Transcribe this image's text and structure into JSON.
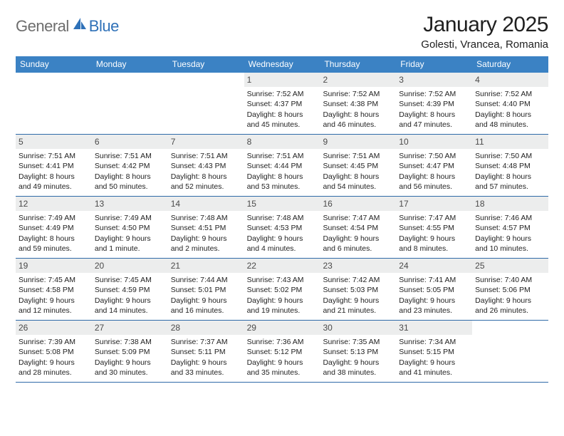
{
  "logo": {
    "text_general": "General",
    "text_blue": "Blue"
  },
  "title": "January 2025",
  "location": "Golesti, Vrancea, Romania",
  "colors": {
    "header_blue": "#3b82c4",
    "rule_blue": "#2f6aa8",
    "daynum_bg": "#eceded",
    "logo_gray": "#6d6d6d",
    "logo_blue": "#2f71b8"
  },
  "weekdays": [
    "Sunday",
    "Monday",
    "Tuesday",
    "Wednesday",
    "Thursday",
    "Friday",
    "Saturday"
  ],
  "weeks": [
    [
      {
        "n": "",
        "empty": true
      },
      {
        "n": "",
        "empty": true
      },
      {
        "n": "",
        "empty": true
      },
      {
        "n": "1",
        "sunrise": "Sunrise: 7:52 AM",
        "sunset": "Sunset: 4:37 PM",
        "daylight": "Daylight: 8 hours and 45 minutes."
      },
      {
        "n": "2",
        "sunrise": "Sunrise: 7:52 AM",
        "sunset": "Sunset: 4:38 PM",
        "daylight": "Daylight: 8 hours and 46 minutes."
      },
      {
        "n": "3",
        "sunrise": "Sunrise: 7:52 AM",
        "sunset": "Sunset: 4:39 PM",
        "daylight": "Daylight: 8 hours and 47 minutes."
      },
      {
        "n": "4",
        "sunrise": "Sunrise: 7:52 AM",
        "sunset": "Sunset: 4:40 PM",
        "daylight": "Daylight: 8 hours and 48 minutes."
      }
    ],
    [
      {
        "n": "5",
        "sunrise": "Sunrise: 7:51 AM",
        "sunset": "Sunset: 4:41 PM",
        "daylight": "Daylight: 8 hours and 49 minutes."
      },
      {
        "n": "6",
        "sunrise": "Sunrise: 7:51 AM",
        "sunset": "Sunset: 4:42 PM",
        "daylight": "Daylight: 8 hours and 50 minutes."
      },
      {
        "n": "7",
        "sunrise": "Sunrise: 7:51 AM",
        "sunset": "Sunset: 4:43 PM",
        "daylight": "Daylight: 8 hours and 52 minutes."
      },
      {
        "n": "8",
        "sunrise": "Sunrise: 7:51 AM",
        "sunset": "Sunset: 4:44 PM",
        "daylight": "Daylight: 8 hours and 53 minutes."
      },
      {
        "n": "9",
        "sunrise": "Sunrise: 7:51 AM",
        "sunset": "Sunset: 4:45 PM",
        "daylight": "Daylight: 8 hours and 54 minutes."
      },
      {
        "n": "10",
        "sunrise": "Sunrise: 7:50 AM",
        "sunset": "Sunset: 4:47 PM",
        "daylight": "Daylight: 8 hours and 56 minutes."
      },
      {
        "n": "11",
        "sunrise": "Sunrise: 7:50 AM",
        "sunset": "Sunset: 4:48 PM",
        "daylight": "Daylight: 8 hours and 57 minutes."
      }
    ],
    [
      {
        "n": "12",
        "sunrise": "Sunrise: 7:49 AM",
        "sunset": "Sunset: 4:49 PM",
        "daylight": "Daylight: 8 hours and 59 minutes."
      },
      {
        "n": "13",
        "sunrise": "Sunrise: 7:49 AM",
        "sunset": "Sunset: 4:50 PM",
        "daylight": "Daylight: 9 hours and 1 minute."
      },
      {
        "n": "14",
        "sunrise": "Sunrise: 7:48 AM",
        "sunset": "Sunset: 4:51 PM",
        "daylight": "Daylight: 9 hours and 2 minutes."
      },
      {
        "n": "15",
        "sunrise": "Sunrise: 7:48 AM",
        "sunset": "Sunset: 4:53 PM",
        "daylight": "Daylight: 9 hours and 4 minutes."
      },
      {
        "n": "16",
        "sunrise": "Sunrise: 7:47 AM",
        "sunset": "Sunset: 4:54 PM",
        "daylight": "Daylight: 9 hours and 6 minutes."
      },
      {
        "n": "17",
        "sunrise": "Sunrise: 7:47 AM",
        "sunset": "Sunset: 4:55 PM",
        "daylight": "Daylight: 9 hours and 8 minutes."
      },
      {
        "n": "18",
        "sunrise": "Sunrise: 7:46 AM",
        "sunset": "Sunset: 4:57 PM",
        "daylight": "Daylight: 9 hours and 10 minutes."
      }
    ],
    [
      {
        "n": "19",
        "sunrise": "Sunrise: 7:45 AM",
        "sunset": "Sunset: 4:58 PM",
        "daylight": "Daylight: 9 hours and 12 minutes."
      },
      {
        "n": "20",
        "sunrise": "Sunrise: 7:45 AM",
        "sunset": "Sunset: 4:59 PM",
        "daylight": "Daylight: 9 hours and 14 minutes."
      },
      {
        "n": "21",
        "sunrise": "Sunrise: 7:44 AM",
        "sunset": "Sunset: 5:01 PM",
        "daylight": "Daylight: 9 hours and 16 minutes."
      },
      {
        "n": "22",
        "sunrise": "Sunrise: 7:43 AM",
        "sunset": "Sunset: 5:02 PM",
        "daylight": "Daylight: 9 hours and 19 minutes."
      },
      {
        "n": "23",
        "sunrise": "Sunrise: 7:42 AM",
        "sunset": "Sunset: 5:03 PM",
        "daylight": "Daylight: 9 hours and 21 minutes."
      },
      {
        "n": "24",
        "sunrise": "Sunrise: 7:41 AM",
        "sunset": "Sunset: 5:05 PM",
        "daylight": "Daylight: 9 hours and 23 minutes."
      },
      {
        "n": "25",
        "sunrise": "Sunrise: 7:40 AM",
        "sunset": "Sunset: 5:06 PM",
        "daylight": "Daylight: 9 hours and 26 minutes."
      }
    ],
    [
      {
        "n": "26",
        "sunrise": "Sunrise: 7:39 AM",
        "sunset": "Sunset: 5:08 PM",
        "daylight": "Daylight: 9 hours and 28 minutes."
      },
      {
        "n": "27",
        "sunrise": "Sunrise: 7:38 AM",
        "sunset": "Sunset: 5:09 PM",
        "daylight": "Daylight: 9 hours and 30 minutes."
      },
      {
        "n": "28",
        "sunrise": "Sunrise: 7:37 AM",
        "sunset": "Sunset: 5:11 PM",
        "daylight": "Daylight: 9 hours and 33 minutes."
      },
      {
        "n": "29",
        "sunrise": "Sunrise: 7:36 AM",
        "sunset": "Sunset: 5:12 PM",
        "daylight": "Daylight: 9 hours and 35 minutes."
      },
      {
        "n": "30",
        "sunrise": "Sunrise: 7:35 AM",
        "sunset": "Sunset: 5:13 PM",
        "daylight": "Daylight: 9 hours and 38 minutes."
      },
      {
        "n": "31",
        "sunrise": "Sunrise: 7:34 AM",
        "sunset": "Sunset: 5:15 PM",
        "daylight": "Daylight: 9 hours and 41 minutes."
      },
      {
        "n": "",
        "empty": true
      }
    ]
  ]
}
